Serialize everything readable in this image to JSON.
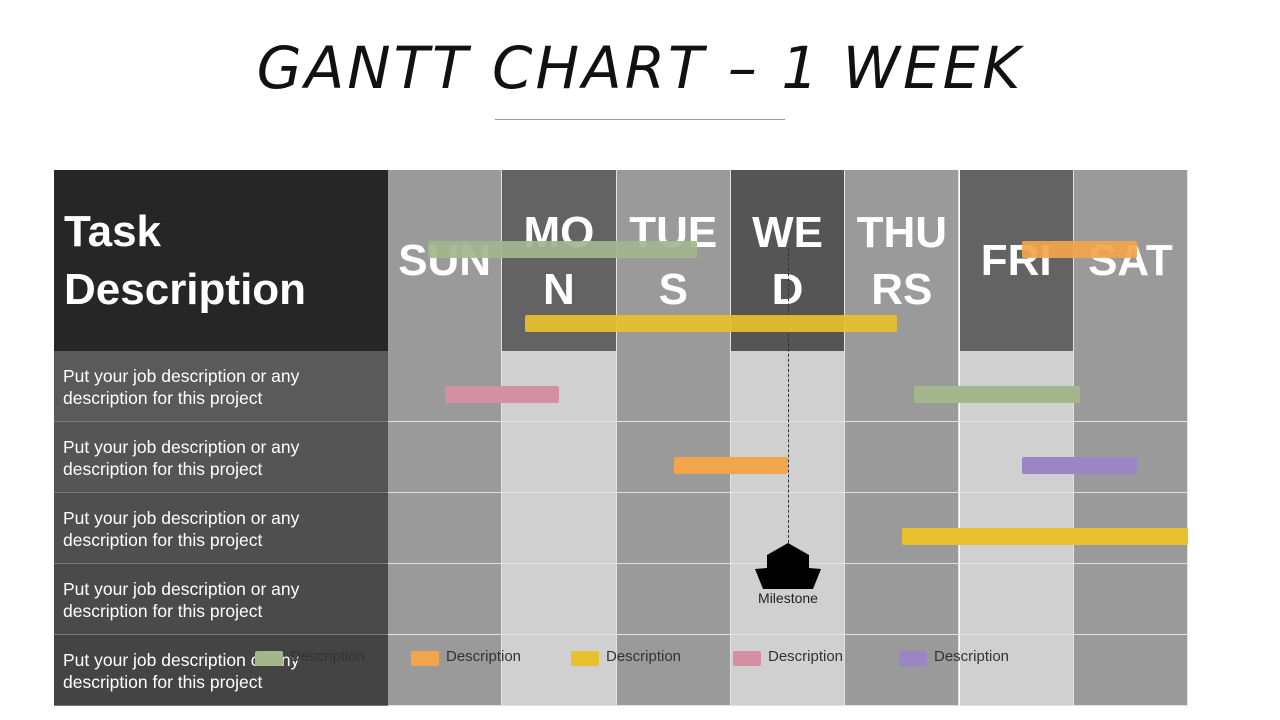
{
  "page": {
    "title": "GANTT CHART – 1 WEEK"
  },
  "chart_data": {
    "type": "gantt",
    "title": "GANTT CHART – 1 WEEK",
    "task_header": "Task Description",
    "days": [
      "SUN",
      "MON",
      "TUES",
      "WED",
      "THURS",
      "FRI",
      "SAT"
    ],
    "tasks": [
      "Put your job description or any description for this project",
      "Put your job description or any description for this project",
      "Put your job description or any description for this project",
      "Put your job description or any description for this project",
      "Put your job description or any description for this project"
    ],
    "legend": [
      {
        "label": "Description",
        "color": "#a3b68c"
      },
      {
        "label": "Description",
        "color": "#f2a54a"
      },
      {
        "label": "Description",
        "color": "#e8c12f"
      },
      {
        "label": "Description",
        "color": "#d48fa3"
      },
      {
        "label": "Description",
        "color": "#9c85c4"
      }
    ],
    "bars": [
      {
        "row": 0,
        "start": 0.35,
        "end": 2.7,
        "color": "#a3b68c"
      },
      {
        "row": 0,
        "start": 5.55,
        "end": 6.55,
        "color": "#f2a54a"
      },
      {
        "row": 0,
        "start": 1.2,
        "end": 4.45,
        "color": "#e8c12f"
      },
      {
        "row": 1,
        "start": 0.5,
        "end": 1.5,
        "color": "#d48fa3"
      },
      {
        "row": 1,
        "start": 4.6,
        "end": 6.05,
        "color": "#a3b68c"
      },
      {
        "row": 2,
        "start": 2.5,
        "end": 3.5,
        "color": "#f2a54a"
      },
      {
        "row": 2,
        "start": 5.55,
        "end": 6.55,
        "color": "#9c85c4"
      },
      {
        "row": 3,
        "start": 4.5,
        "end": 7.0,
        "color": "#e8c12f"
      }
    ],
    "milestone": {
      "label": "Milestone",
      "day": 3.5,
      "row": 4
    }
  }
}
